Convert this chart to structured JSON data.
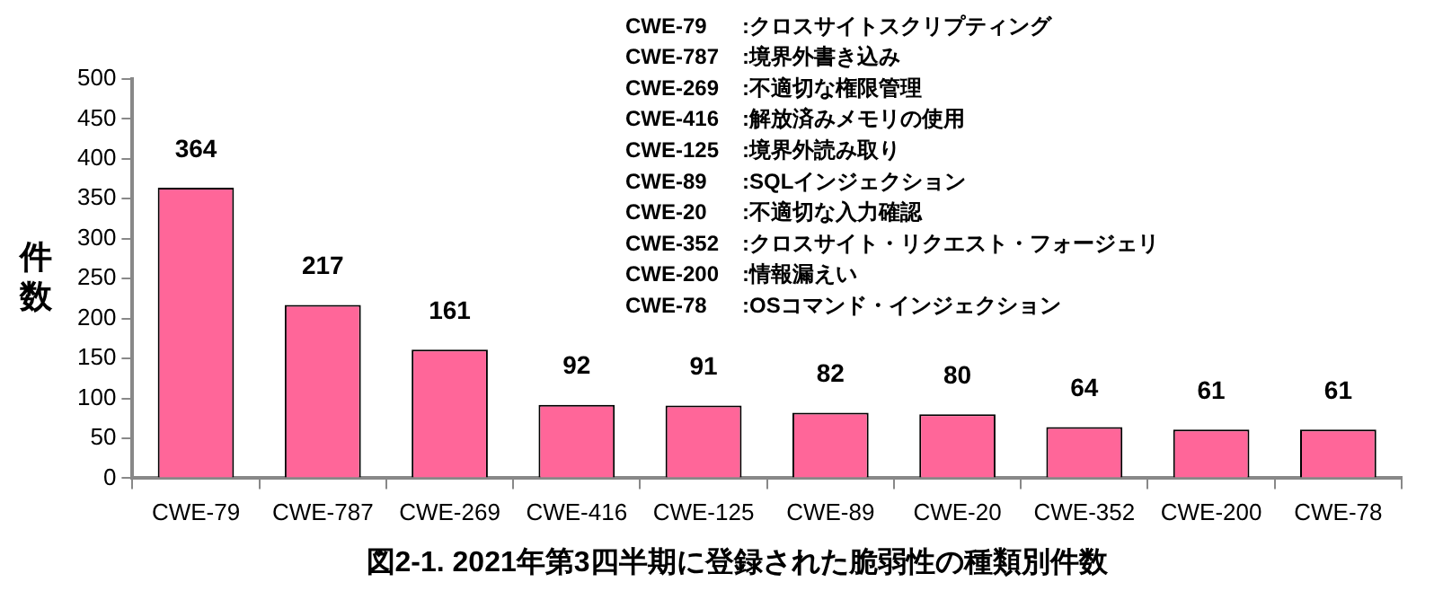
{
  "chart_data": {
    "type": "bar",
    "title": "図2-1. 2021年第3四半期に登録された脆弱性の種類別件数",
    "ylabel": "件数",
    "categories": [
      "CWE-79",
      "CWE-787",
      "CWE-269",
      "CWE-416",
      "CWE-125",
      "CWE-89",
      "CWE-20",
      "CWE-352",
      "CWE-200",
      "CWE-78"
    ],
    "values": [
      364,
      217,
      161,
      92,
      91,
      82,
      80,
      64,
      61,
      61
    ],
    "color": "#ff6699",
    "ylim": [
      0,
      500
    ],
    "yticks": [
      0,
      50,
      100,
      150,
      200,
      250,
      300,
      350,
      400,
      450,
      500
    ],
    "grid": false,
    "legend": false,
    "data_labels": true,
    "annotations": [
      "CWE-79 :クロスサイトスクリプティング",
      "CWE-787 :境界外書き込み",
      "CWE-269 :不適切な権限管理",
      "CWE-416 :解放済みメモリの使用",
      "CWE-125 :境界外読み取り",
      "CWE-89 :SQLインジェクション",
      "CWE-20 :不適切な入力確認",
      "CWE-352 :クロスサイト・リクエスト・フォージェリ",
      "CWE-200 :情報漏えい",
      "CWE-78 :OSコマンド・インジェクション"
    ]
  }
}
